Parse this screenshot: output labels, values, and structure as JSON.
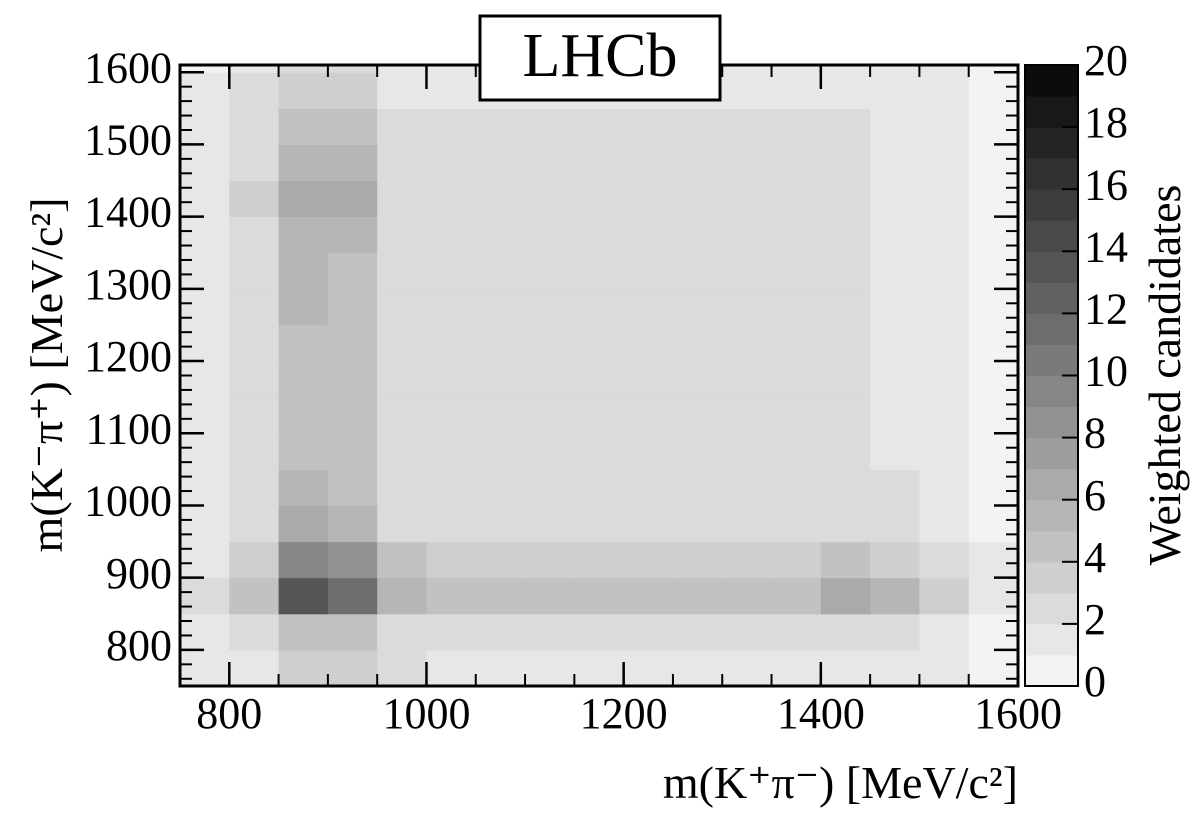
{
  "chart_data": {
    "type": "heatmap",
    "annotation": "LHCb",
    "x_label": "m(K⁺π⁻) [MeV/c²]",
    "y_label": "m(K⁻π⁺) [MeV/c²]",
    "colorbar_label": "Weighted candidates",
    "xlim": [
      750,
      1600
    ],
    "ylim": [
      750,
      1610
    ],
    "xticks": [
      800,
      1000,
      1200,
      1400,
      1600
    ],
    "yticks": [
      800,
      900,
      1000,
      1100,
      1200,
      1300,
      1400,
      1500,
      1600
    ],
    "zlim": [
      0,
      20
    ],
    "zticks": [
      0,
      2,
      4,
      6,
      8,
      10,
      12,
      14,
      16,
      18,
      20
    ],
    "colormap": "gray",
    "x_bins": [
      750,
      800,
      850,
      900,
      950,
      1000,
      1050,
      1100,
      1150,
      1200,
      1250,
      1300,
      1350,
      1400,
      1450,
      1500,
      1550,
      1600
    ],
    "y_bins": [
      750,
      800,
      850,
      900,
      950,
      1000,
      1050,
      1100,
      1150,
      1200,
      1250,
      1300,
      1350,
      1400,
      1450,
      1500,
      1550,
      1600,
      1610
    ],
    "z": [
      [
        1,
        1.5,
        3,
        3,
        2,
        1.5,
        1.5,
        1.5,
        1.5,
        1.5,
        1.5,
        1.5,
        1.5,
        1.5,
        1.5,
        1,
        0.5
      ],
      [
        1,
        2,
        4,
        4,
        2,
        2,
        2,
        2,
        2,
        2,
        2,
        2,
        2,
        2,
        2,
        1.5,
        0.5
      ],
      [
        2,
        4,
        13,
        11,
        5,
        4,
        4,
        4,
        4,
        4,
        4,
        4,
        4,
        6,
        5,
        3,
        1
      ],
      [
        1.5,
        3,
        9,
        8,
        4,
        3,
        3,
        3,
        3,
        3,
        3,
        3,
        3,
        4,
        3,
        2,
        1
      ],
      [
        1,
        2,
        6,
        5,
        2,
        2,
        2,
        2,
        2,
        2,
        2,
        2,
        2,
        2,
        2,
        1.5,
        0.5
      ],
      [
        1,
        2,
        5,
        4,
        2,
        2,
        2,
        2,
        2,
        2,
        2,
        2,
        2,
        2,
        2,
        1,
        0.5
      ],
      [
        1,
        2,
        4,
        4,
        2,
        2,
        2,
        2,
        2,
        2,
        2,
        2,
        2,
        2,
        1.5,
        1,
        0.5
      ],
      [
        1,
        2,
        4,
        4,
        2,
        2,
        2,
        2,
        2,
        2,
        2,
        2,
        2,
        2,
        1.5,
        1,
        0.5
      ],
      [
        1,
        2,
        4,
        4,
        2,
        2,
        2,
        2,
        2,
        2,
        2,
        2,
        2,
        2,
        1.5,
        1,
        0.5
      ],
      [
        1,
        2,
        4,
        4,
        2,
        2,
        2,
        2,
        2,
        2,
        2,
        2,
        2,
        2,
        1.5,
        1,
        0.5
      ],
      [
        1,
        2,
        5,
        4,
        2,
        2,
        2,
        2,
        2,
        2,
        2,
        2,
        2,
        2,
        1.5,
        1,
        0.5
      ],
      [
        1,
        2,
        5,
        4,
        2,
        2,
        2,
        2,
        2,
        2,
        2,
        2,
        2,
        2,
        1.5,
        1,
        0.5
      ],
      [
        1,
        2.5,
        5,
        5,
        2,
        2,
        2,
        2,
        2,
        2,
        2,
        2,
        2,
        2,
        1.5,
        1,
        0.5
      ],
      [
        1,
        3,
        6,
        6,
        2.5,
        2.5,
        2,
        2,
        2,
        2,
        2,
        2,
        2,
        2,
        1.5,
        1,
        0.5
      ],
      [
        1,
        2.5,
        5,
        5,
        2,
        2,
        2,
        2,
        2,
        2,
        2,
        2,
        2,
        2,
        1.5,
        1,
        0.5
      ],
      [
        1,
        2,
        4,
        4,
        2,
        2,
        2,
        2,
        2,
        2,
        2,
        2,
        2,
        2,
        1.5,
        1,
        0.5
      ],
      [
        1,
        2,
        3,
        3,
        1.5,
        1.5,
        1.5,
        1.5,
        1.5,
        1.5,
        1.5,
        1.5,
        1.5,
        1.5,
        1.5,
        1,
        0.5
      ],
      [
        0.5,
        1.5,
        2,
        2,
        1,
        1,
        1,
        1,
        1,
        1,
        1,
        1,
        1,
        1,
        1,
        1,
        0.5
      ]
    ]
  }
}
